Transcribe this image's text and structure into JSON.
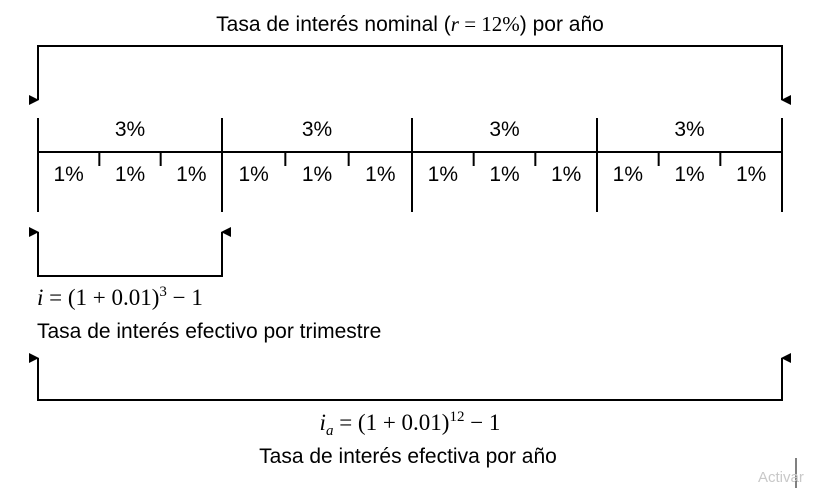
{
  "top_label": {
    "prefix": "Tasa de interés nominal (",
    "var": "r",
    "eq": " = 12%",
    "suffix": ") por año"
  },
  "quarters": [
    "3%",
    "3%",
    "3%",
    "3%"
  ],
  "months": [
    "1%",
    "1%",
    "1%",
    "1%",
    "1%",
    "1%",
    "1%",
    "1%",
    "1%",
    "1%",
    "1%",
    "1%"
  ],
  "quarter_formula": {
    "var": "i",
    "eq_start": " = (1 + 0.01)",
    "exp": "3",
    "eq_end": " − 1",
    "caption": "Tasa de interés efectivo por trimestre"
  },
  "annual_formula": {
    "var": "i",
    "sub": "a",
    "eq_start": " = (1 + 0.01)",
    "exp": "12",
    "eq_end": " − 1",
    "caption": "Tasa de interés efectiva por año"
  },
  "watermark": "Activar",
  "colors": {
    "line": "#000000",
    "watermark": "#c8c8c8"
  }
}
